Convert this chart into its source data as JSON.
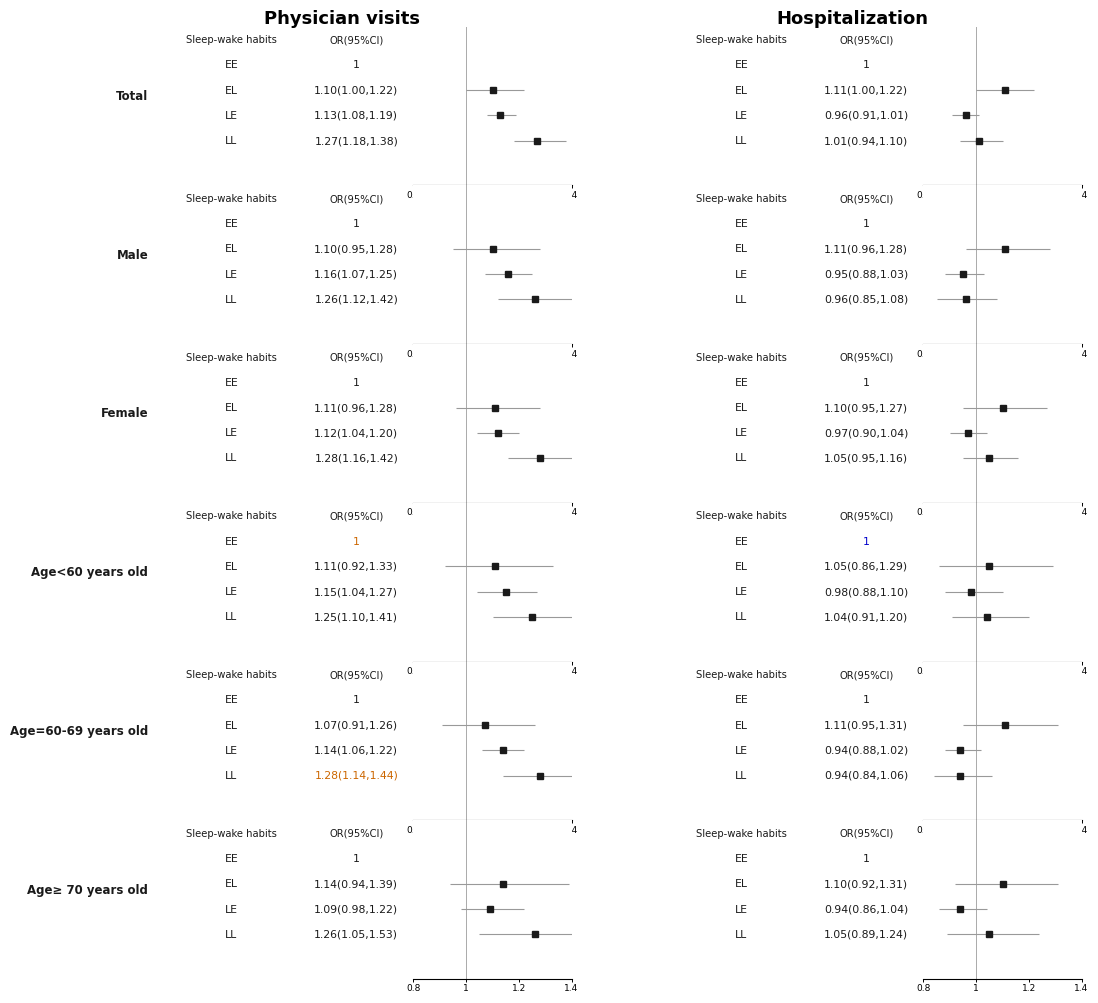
{
  "title_left": "Physician visits",
  "title_right": "Hospitalization",
  "groups": [
    {
      "label": "Total",
      "left": {
        "EE": {
          "or": 1.0,
          "lo": 1.0,
          "hi": 1.0,
          "text": "1",
          "color": "#1a1a1a"
        },
        "EL": {
          "or": 1.1,
          "lo": 1.0,
          "hi": 1.22,
          "text": "1.10(1.00,1.22)",
          "color": "#1a1a1a"
        },
        "LE": {
          "or": 1.13,
          "lo": 1.08,
          "hi": 1.19,
          "text": "1.13(1.08,1.19)",
          "color": "#1a1a1a"
        },
        "LL": {
          "or": 1.27,
          "lo": 1.18,
          "hi": 1.38,
          "text": "1.27(1.18,1.38)",
          "color": "#1a1a1a"
        }
      },
      "right": {
        "EE": {
          "or": 1.0,
          "lo": 1.0,
          "hi": 1.0,
          "text": "1",
          "color": "#1a1a1a"
        },
        "EL": {
          "or": 1.11,
          "lo": 1.0,
          "hi": 1.22,
          "text": "1.11(1.00,1.22)",
          "color": "#1a1a1a"
        },
        "LE": {
          "or": 0.96,
          "lo": 0.91,
          "hi": 1.01,
          "text": "0.96(0.91,1.01)",
          "color": "#1a1a1a"
        },
        "LL": {
          "or": 1.01,
          "lo": 0.94,
          "hi": 1.1,
          "text": "1.01(0.94,1.10)",
          "color": "#1a1a1a"
        }
      }
    },
    {
      "label": "Male",
      "left": {
        "EE": {
          "or": 1.0,
          "lo": 1.0,
          "hi": 1.0,
          "text": "1",
          "color": "#1a1a1a"
        },
        "EL": {
          "or": 1.1,
          "lo": 0.95,
          "hi": 1.28,
          "text": "1.10(0.95,1.28)",
          "color": "#1a1a1a"
        },
        "LE": {
          "or": 1.16,
          "lo": 1.07,
          "hi": 1.25,
          "text": "1.16(1.07,1.25)",
          "color": "#1a1a1a"
        },
        "LL": {
          "or": 1.26,
          "lo": 1.12,
          "hi": 1.42,
          "text": "1.26(1.12,1.42)",
          "color": "#1a1a1a"
        }
      },
      "right": {
        "EE": {
          "or": 1.0,
          "lo": 1.0,
          "hi": 1.0,
          "text": "1",
          "color": "#1a1a1a"
        },
        "EL": {
          "or": 1.11,
          "lo": 0.96,
          "hi": 1.28,
          "text": "1.11(0.96,1.28)",
          "color": "#1a1a1a"
        },
        "LE": {
          "or": 0.95,
          "lo": 0.88,
          "hi": 1.03,
          "text": "0.95(0.88,1.03)",
          "color": "#1a1a1a"
        },
        "LL": {
          "or": 0.96,
          "lo": 0.85,
          "hi": 1.08,
          "text": "0.96(0.85,1.08)",
          "color": "#1a1a1a"
        }
      }
    },
    {
      "label": "Female",
      "left": {
        "EE": {
          "or": 1.0,
          "lo": 1.0,
          "hi": 1.0,
          "text": "1",
          "color": "#1a1a1a"
        },
        "EL": {
          "or": 1.11,
          "lo": 0.96,
          "hi": 1.28,
          "text": "1.11(0.96,1.28)",
          "color": "#1a1a1a"
        },
        "LE": {
          "or": 1.12,
          "lo": 1.04,
          "hi": 1.2,
          "text": "1.12(1.04,1.20)",
          "color": "#1a1a1a"
        },
        "LL": {
          "or": 1.28,
          "lo": 1.16,
          "hi": 1.42,
          "text": "1.28(1.16,1.42)",
          "color": "#1a1a1a"
        }
      },
      "right": {
        "EE": {
          "or": 1.0,
          "lo": 1.0,
          "hi": 1.0,
          "text": "1",
          "color": "#1a1a1a"
        },
        "EL": {
          "or": 1.1,
          "lo": 0.95,
          "hi": 1.27,
          "text": "1.10(0.95,1.27)",
          "color": "#1a1a1a"
        },
        "LE": {
          "or": 0.97,
          "lo": 0.9,
          "hi": 1.04,
          "text": "0.97(0.90,1.04)",
          "color": "#1a1a1a"
        },
        "LL": {
          "or": 1.05,
          "lo": 0.95,
          "hi": 1.16,
          "text": "1.05(0.95,1.16)",
          "color": "#1a1a1a"
        }
      }
    },
    {
      "label": "Age<60 years old",
      "left": {
        "EE": {
          "or": 1.0,
          "lo": 1.0,
          "hi": 1.0,
          "text": "1",
          "color": "#cc6600"
        },
        "EL": {
          "or": 1.11,
          "lo": 0.92,
          "hi": 1.33,
          "text": "1.11(0.92,1.33)",
          "color": "#1a1a1a"
        },
        "LE": {
          "or": 1.15,
          "lo": 1.04,
          "hi": 1.27,
          "text": "1.15(1.04,1.27)",
          "color": "#1a1a1a"
        },
        "LL": {
          "or": 1.25,
          "lo": 1.1,
          "hi": 1.41,
          "text": "1.25(1.10,1.41)",
          "color": "#1a1a1a"
        }
      },
      "right": {
        "EE": {
          "or": 1.0,
          "lo": 1.0,
          "hi": 1.0,
          "text": "1",
          "color": "#0000cc"
        },
        "EL": {
          "or": 1.05,
          "lo": 0.86,
          "hi": 1.29,
          "text": "1.05(0.86,1.29)",
          "color": "#1a1a1a"
        },
        "LE": {
          "or": 0.98,
          "lo": 0.88,
          "hi": 1.1,
          "text": "0.98(0.88,1.10)",
          "color": "#1a1a1a"
        },
        "LL": {
          "or": 1.04,
          "lo": 0.91,
          "hi": 1.2,
          "text": "1.04(0.91,1.20)",
          "color": "#1a1a1a"
        }
      }
    },
    {
      "label": "Age=60-69 years old",
      "left": {
        "EE": {
          "or": 1.0,
          "lo": 1.0,
          "hi": 1.0,
          "text": "1",
          "color": "#1a1a1a"
        },
        "EL": {
          "or": 1.07,
          "lo": 0.91,
          "hi": 1.26,
          "text": "1.07(0.91,1.26)",
          "color": "#1a1a1a"
        },
        "LE": {
          "or": 1.14,
          "lo": 1.06,
          "hi": 1.22,
          "text": "1.14(1.06,1.22)",
          "color": "#1a1a1a"
        },
        "LL": {
          "or": 1.28,
          "lo": 1.14,
          "hi": 1.44,
          "text": "1.28(1.14,1.44)",
          "color": "#cc6600"
        }
      },
      "right": {
        "EE": {
          "or": 1.0,
          "lo": 1.0,
          "hi": 1.0,
          "text": "1",
          "color": "#1a1a1a"
        },
        "EL": {
          "or": 1.11,
          "lo": 0.95,
          "hi": 1.31,
          "text": "1.11(0.95,1.31)",
          "color": "#1a1a1a"
        },
        "LE": {
          "or": 0.94,
          "lo": 0.88,
          "hi": 1.02,
          "text": "0.94(0.88,1.02)",
          "color": "#1a1a1a"
        },
        "LL": {
          "or": 0.94,
          "lo": 0.84,
          "hi": 1.06,
          "text": "0.94(0.84,1.06)",
          "color": "#1a1a1a"
        }
      }
    },
    {
      "label": "Age≥ 70 years old",
      "left": {
        "EE": {
          "or": 1.0,
          "lo": 1.0,
          "hi": 1.0,
          "text": "1",
          "color": "#1a1a1a"
        },
        "EL": {
          "or": 1.14,
          "lo": 0.94,
          "hi": 1.39,
          "text": "1.14(0.94,1.39)",
          "color": "#1a1a1a"
        },
        "LE": {
          "or": 1.09,
          "lo": 0.98,
          "hi": 1.22,
          "text": "1.09(0.98,1.22)",
          "color": "#1a1a1a"
        },
        "LL": {
          "or": 1.26,
          "lo": 1.05,
          "hi": 1.53,
          "text": "1.26(1.05,1.53)",
          "color": "#1a1a1a"
        }
      },
      "right": {
        "EE": {
          "or": 1.0,
          "lo": 1.0,
          "hi": 1.0,
          "text": "1",
          "color": "#1a1a1a"
        },
        "EL": {
          "or": 1.1,
          "lo": 0.92,
          "hi": 1.31,
          "text": "1.10(0.92,1.31)",
          "color": "#1a1a1a"
        },
        "LE": {
          "or": 0.94,
          "lo": 0.86,
          "hi": 1.04,
          "text": "0.94(0.86,1.04)",
          "color": "#1a1a1a"
        },
        "LL": {
          "or": 1.05,
          "lo": 0.89,
          "hi": 1.24,
          "text": "1.05(0.89,1.24)",
          "color": "#1a1a1a"
        }
      }
    }
  ],
  "xmin": 0.8,
  "xmax": 1.4,
  "xticks": [
    0.8,
    1.0,
    1.2,
    1.4
  ],
  "xtick_labels": [
    "0.8",
    "1",
    "1.2",
    "1.4"
  ],
  "marker_color": "#1a1a1a",
  "line_color": "#999999",
  "text_color": "#1a1a1a",
  "ref_line_color": "#aaaaaa",
  "header_col1": "Sleep-wake habits",
  "header_col2": "OR(95%CI)",
  "rows": [
    "EE",
    "EL",
    "LE",
    "LL"
  ]
}
